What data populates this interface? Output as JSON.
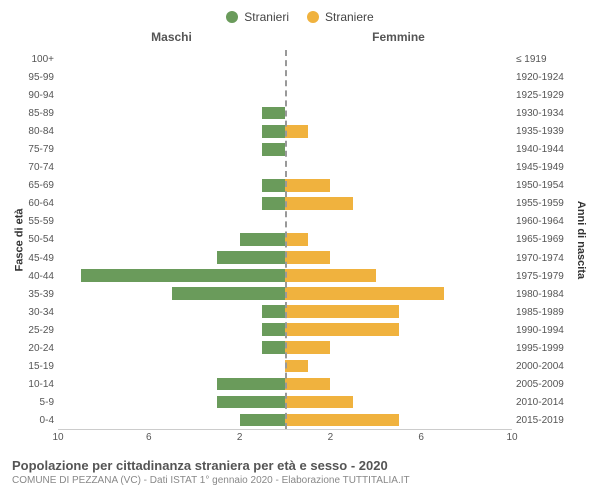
{
  "chart": {
    "type": "population-pyramid",
    "legend": {
      "male": {
        "label": "Stranieri",
        "color": "#6a9b5b"
      },
      "female": {
        "label": "Straniere",
        "color": "#f0b23e"
      }
    },
    "header_left": "Maschi",
    "header_right": "Femmine",
    "yaxis_left_label": "Fasce di età",
    "yaxis_right_label": "Anni di nascita",
    "x_max": 10,
    "x_ticks_left": [
      10,
      6,
      2
    ],
    "x_ticks_right": [
      2,
      6,
      10
    ],
    "centerline_color": "#999999",
    "background_color": "#ffffff",
    "bar_height_pct": 70,
    "age_groups": [
      {
        "age": "100+",
        "birth": "≤ 1919",
        "m": 0,
        "f": 0
      },
      {
        "age": "95-99",
        "birth": "1920-1924",
        "m": 0,
        "f": 0
      },
      {
        "age": "90-94",
        "birth": "1925-1929",
        "m": 0,
        "f": 0
      },
      {
        "age": "85-89",
        "birth": "1930-1934",
        "m": 1,
        "f": 0
      },
      {
        "age": "80-84",
        "birth": "1935-1939",
        "m": 1,
        "f": 1
      },
      {
        "age": "75-79",
        "birth": "1940-1944",
        "m": 1,
        "f": 0
      },
      {
        "age": "70-74",
        "birth": "1945-1949",
        "m": 0,
        "f": 0
      },
      {
        "age": "65-69",
        "birth": "1950-1954",
        "m": 1,
        "f": 2
      },
      {
        "age": "60-64",
        "birth": "1955-1959",
        "m": 1,
        "f": 3
      },
      {
        "age": "55-59",
        "birth": "1960-1964",
        "m": 0,
        "f": 0
      },
      {
        "age": "50-54",
        "birth": "1965-1969",
        "m": 2,
        "f": 1
      },
      {
        "age": "45-49",
        "birth": "1970-1974",
        "m": 3,
        "f": 2
      },
      {
        "age": "40-44",
        "birth": "1975-1979",
        "m": 9,
        "f": 4
      },
      {
        "age": "35-39",
        "birth": "1980-1984",
        "m": 5,
        "f": 7
      },
      {
        "age": "30-34",
        "birth": "1985-1989",
        "m": 1,
        "f": 5
      },
      {
        "age": "25-29",
        "birth": "1990-1994",
        "m": 1,
        "f": 5
      },
      {
        "age": "20-24",
        "birth": "1995-1999",
        "m": 1,
        "f": 2
      },
      {
        "age": "15-19",
        "birth": "2000-2004",
        "m": 0,
        "f": 1
      },
      {
        "age": "10-14",
        "birth": "2005-2009",
        "m": 3,
        "f": 2
      },
      {
        "age": "5-9",
        "birth": "2010-2014",
        "m": 3,
        "f": 3
      },
      {
        "age": "0-4",
        "birth": "2015-2019",
        "m": 2,
        "f": 5
      }
    ],
    "title": "Popolazione per cittadinanza straniera per età e sesso - 2020",
    "subtitle": "COMUNE DI PEZZANA (VC) - Dati ISTAT 1° gennaio 2020 - Elaborazione TUTTITALIA.IT",
    "fonts": {
      "tick_size_pt": 10,
      "label_size_pt": 11,
      "header_size_pt": 12,
      "title_size_pt": 13,
      "subtitle_size_pt": 10,
      "tick_color": "#555555",
      "title_color": "#555555",
      "subtitle_color": "#888888"
    }
  }
}
